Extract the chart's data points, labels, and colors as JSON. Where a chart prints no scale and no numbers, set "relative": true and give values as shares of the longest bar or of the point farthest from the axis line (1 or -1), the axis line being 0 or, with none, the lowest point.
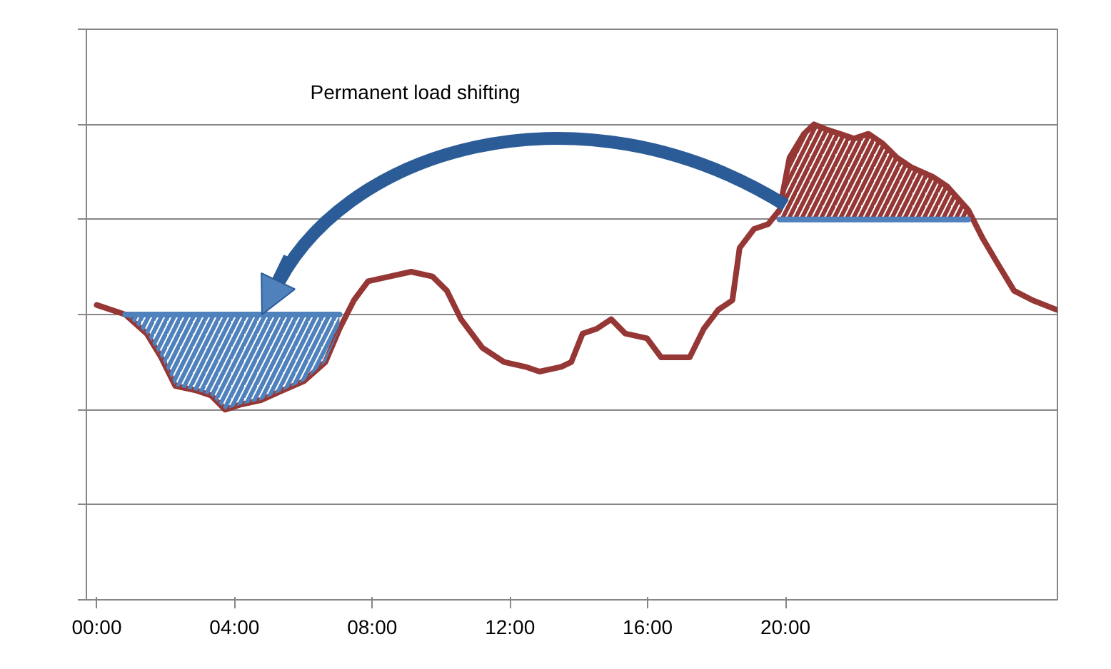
{
  "chart_data": {
    "type": "line",
    "relative": true,
    "grid": "y",
    "marker": "none",
    "line_style": "solid",
    "annotations": [
      "Permanent load shifting"
    ],
    "xlim": [
      -0.3,
      27.9
    ],
    "xticks": [
      {
        "value": 0,
        "label": "00:00"
      },
      {
        "value": 4,
        "label": "04:00"
      },
      {
        "value": 8,
        "label": "08:00"
      },
      {
        "value": 12,
        "label": "12:00"
      },
      {
        "value": 16,
        "label": "16:00"
      },
      {
        "value": 20,
        "label": "20:00"
      }
    ],
    "series": [
      {
        "color": "#953735",
        "x": [
          0,
          0.83,
          1.45,
          1.87,
          2.28,
          2.9,
          3.32,
          3.73,
          4.15,
          4.77,
          5.39,
          6.02,
          6.64,
          7.05,
          7.47,
          7.88,
          8.51,
          9.13,
          9.75,
          10.17,
          10.58,
          11.2,
          11.83,
          12.45,
          12.86,
          13.49,
          13.78,
          14.11,
          14.52,
          14.94,
          15.35,
          15.98,
          16.39,
          17.22,
          17.63,
          18.05,
          18.46,
          18.67,
          19.09,
          19.5,
          19.83,
          20.12,
          20.54,
          20.83,
          21.16,
          21.58,
          21.99,
          22.41,
          22.82,
          23.24,
          23.65,
          24.27,
          24.69,
          25.31,
          25.73,
          26.14,
          26.64,
          27.18,
          27.88
        ],
        "values": [
          0.62,
          0.6,
          0.56,
          0.51,
          0.45,
          0.44,
          0.43,
          0.4,
          0.41,
          0.42,
          0.44,
          0.46,
          0.5,
          0.57,
          0.63,
          0.67,
          0.68,
          0.69,
          0.68,
          0.65,
          0.59,
          0.53,
          0.5,
          0.49,
          0.48,
          0.49,
          0.5,
          0.56,
          0.57,
          0.59,
          0.56,
          0.55,
          0.51,
          0.51,
          0.57,
          0.61,
          0.63,
          0.74,
          0.78,
          0.79,
          0.82,
          0.93,
          0.98,
          1.0,
          0.99,
          0.98,
          0.97,
          0.98,
          0.96,
          0.93,
          0.91,
          0.89,
          0.87,
          0.82,
          0.76,
          0.71,
          0.65,
          0.63,
          0.61
        ]
      },
      {
        "color": "#4f81bd",
        "x": [
          0.83,
          1.45,
          1.87,
          2.28,
          2.9,
          3.32,
          3.73,
          4.15,
          4.77,
          5.39,
          6.02,
          6.64,
          7.05
        ],
        "values": [
          0.6,
          0.6,
          0.6,
          0.6,
          0.6,
          0.6,
          0.6,
          0.6,
          0.6,
          0.6,
          0.6,
          0.6,
          0.6
        ],
        "upper": [
          0.6,
          0.6,
          0.6,
          0.6,
          0.6,
          0.6,
          0.6,
          0.6,
          0.6,
          0.6,
          0.6,
          0.6,
          0.6
        ],
        "lower": [
          0.6,
          0.56,
          0.51,
          0.45,
          0.44,
          0.43,
          0.4,
          0.41,
          0.42,
          0.44,
          0.46,
          0.5,
          0.57
        ]
      },
      {
        "color": "#4f81bd",
        "x": [
          19.83,
          20.12,
          20.54,
          20.83,
          21.16,
          21.58,
          21.99,
          22.41,
          22.82,
          23.24,
          23.65,
          24.27,
          24.69,
          25.31
        ],
        "values": [
          0.8,
          0.8,
          0.8,
          0.8,
          0.8,
          0.8,
          0.8,
          0.8,
          0.8,
          0.8,
          0.8,
          0.8,
          0.8,
          0.8
        ],
        "lower": [
          0.8,
          0.8,
          0.8,
          0.8,
          0.8,
          0.8,
          0.8,
          0.8,
          0.8,
          0.8,
          0.8,
          0.8,
          0.8,
          0.8
        ],
        "upper": [
          0.82,
          0.93,
          0.98,
          1.0,
          0.99,
          0.98,
          0.97,
          0.98,
          0.96,
          0.93,
          0.91,
          0.89,
          0.87,
          0.82
        ]
      }
    ]
  }
}
